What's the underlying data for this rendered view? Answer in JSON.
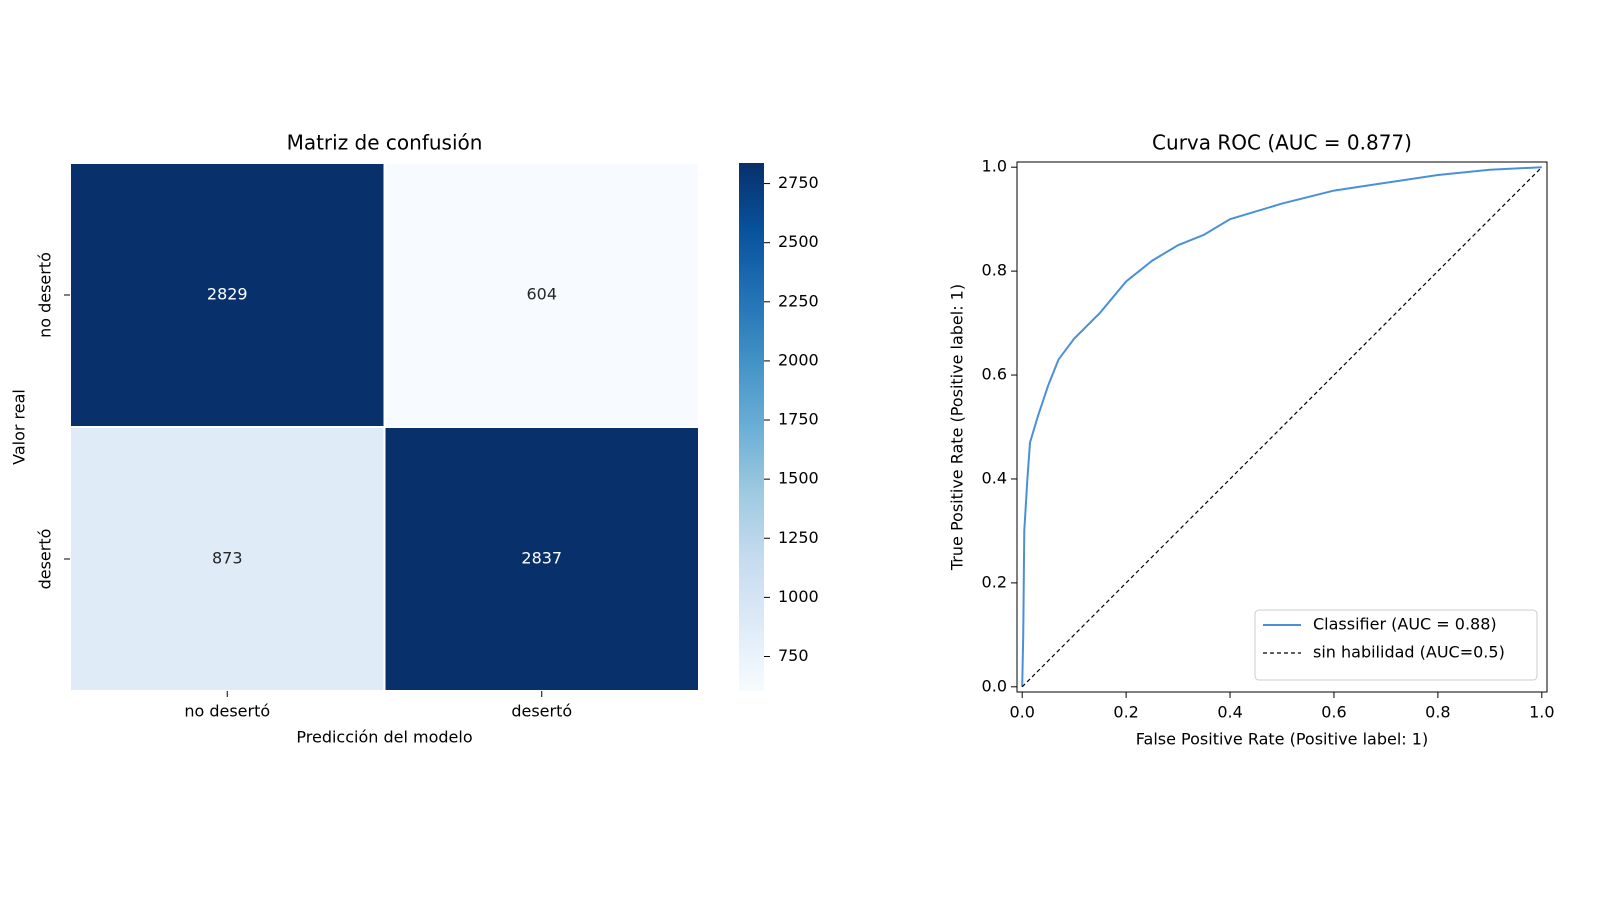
{
  "chart_data": [
    {
      "type": "heatmap",
      "title": "Matriz de confusión",
      "x_label": "Predicción del modelo",
      "y_label": "Valor real",
      "x_categories": [
        "no desertó",
        "desertó"
      ],
      "y_categories": [
        "no desertó",
        "desertó"
      ],
      "values": [
        [
          2829,
          604
        ],
        [
          873,
          2837
        ]
      ],
      "zlim": [
        604,
        2837
      ],
      "zticks": [
        750,
        1000,
        1250,
        1500,
        1750,
        2000,
        2250,
        2500,
        2750
      ],
      "colormap": [
        "#f7fbff",
        "#deebf7",
        "#c6dbef",
        "#9ecae1",
        "#6baed6",
        "#4292c6",
        "#2171b5",
        "#08519c",
        "#08306b"
      ]
    },
    {
      "type": "line",
      "title": "Curva ROC  (AUC = 0.877)",
      "x_label": "False Positive Rate (Positive label: 1)",
      "y_label": "True Positive Rate (Positive label: 1)",
      "xlim": [
        -0.01,
        1.01
      ],
      "ylim": [
        -0.01,
        1.01
      ],
      "xticks": [
        {
          "value": 0,
          "label": "0.0"
        },
        0.2,
        0.4,
        0.6,
        0.8,
        {
          "value": 1,
          "label": "1.0"
        }
      ],
      "yticks": [
        {
          "value": 0,
          "label": "0.0"
        },
        0.2,
        0.4,
        0.6,
        0.8,
        {
          "value": 1,
          "label": "1.0"
        }
      ],
      "legend": "lower right",
      "series": [
        {
          "name": "Classifier (AUC = 0.88)",
          "color": "#4a90d9",
          "dash": "solid",
          "x": [
            0,
            0.002,
            0.004,
            0.01,
            0.015,
            0.03,
            0.05,
            0.07,
            0.1,
            0.15,
            0.2,
            0.25,
            0.3,
            0.35,
            0.4,
            0.5,
            0.6,
            0.7,
            0.8,
            0.9,
            1.0
          ],
          "values": [
            0,
            0.1,
            0.3,
            0.4,
            0.47,
            0.52,
            0.58,
            0.63,
            0.67,
            0.72,
            0.78,
            0.82,
            0.85,
            0.87,
            0.9,
            0.93,
            0.955,
            0.97,
            0.985,
            0.995,
            1.0
          ]
        },
        {
          "name": "sin habilidad (AUC=0.5)",
          "color": "#000000",
          "dash": "dashed",
          "x": [
            0,
            1
          ],
          "values": [
            0,
            1
          ]
        }
      ]
    }
  ]
}
